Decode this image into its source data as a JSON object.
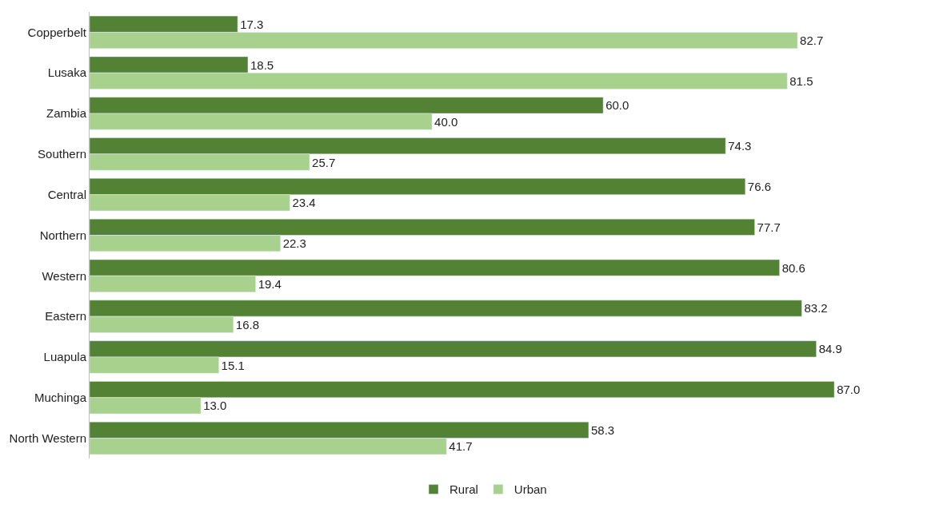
{
  "chart_data": {
    "type": "bar",
    "orientation": "horizontal",
    "categories": [
      "Copperbelt",
      "Lusaka",
      "Zambia",
      "Southern",
      "Central",
      "Northern",
      "Western",
      "Eastern",
      "Luapula",
      "Muchinga",
      "North Western"
    ],
    "series": [
      {
        "name": "Rural",
        "color": "#548235",
        "values": [
          17.3,
          18.5,
          60.0,
          74.3,
          76.6,
          77.7,
          80.6,
          83.2,
          84.9,
          87.0,
          58.3
        ],
        "value_labels": [
          "17.3",
          "18.5",
          "60.0",
          "74.3",
          "76.6",
          "77.7",
          "80.6",
          "83.2",
          "84.9",
          "87.0",
          "58.3"
        ]
      },
      {
        "name": "Urban",
        "color": "#a9d18e",
        "values": [
          82.7,
          81.5,
          40.0,
          25.7,
          23.4,
          22.3,
          19.4,
          16.8,
          15.1,
          13.0,
          41.7
        ],
        "value_labels": [
          "82.7",
          "81.5",
          "40.0",
          "25.7",
          "23.4",
          "22.3",
          "19.4",
          "16.8",
          "15.1",
          "13.0",
          "41.7"
        ]
      }
    ],
    "legend": "bottom"
  }
}
